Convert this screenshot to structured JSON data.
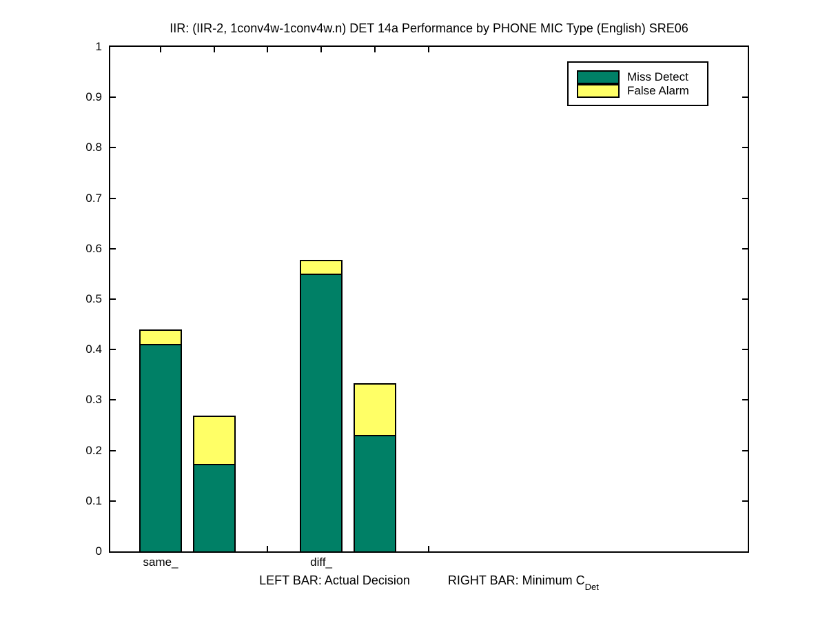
{
  "title": "IIR: (IIR-2, 1conv4w-1conv4w.n) DET 14a Performance by PHONE MIC Type (English) SRE06",
  "legend": {
    "position": "top-right",
    "items": [
      {
        "label": "Miss Detect",
        "color": "#008066"
      },
      {
        "label": "False Alarm",
        "color": "#ffff66"
      }
    ]
  },
  "footer": {
    "left_text": "LEFT BAR: Actual Decision",
    "right_text": "RIGHT BAR: Minimum C",
    "right_subscript": "Det"
  },
  "chart_data": {
    "type": "bar",
    "stacked": true,
    "title": "IIR: (IIR-2, 1conv4w-1conv4w.n) DET 14a Performance by PHONE MIC Type (English) SRE06",
    "xlabel": "LEFT BAR: Actual Decision     RIGHT BAR: Minimum C_Det",
    "ylabel": "",
    "ylim": [
      0,
      1
    ],
    "grid": false,
    "legend_position": "top-right",
    "series_names": [
      "Miss Detect",
      "False Alarm"
    ],
    "colors": {
      "miss_detect": "#008066",
      "false_alarm": "#ffff66"
    },
    "y_ticks": [
      {
        "value": 0.0,
        "label": "0"
      },
      {
        "value": 0.1,
        "label": "0.1"
      },
      {
        "value": 0.2,
        "label": "0.2"
      },
      {
        "value": 0.3,
        "label": "0.3"
      },
      {
        "value": 0.4,
        "label": "0.4"
      },
      {
        "value": 0.5,
        "label": "0.5"
      },
      {
        "value": 0.6,
        "label": "0.6"
      },
      {
        "value": 0.7,
        "label": "0.7"
      },
      {
        "value": 0.8,
        "label": "0.8"
      },
      {
        "value": 0.9,
        "label": "0.9"
      },
      {
        "value": 1.0,
        "label": "1"
      }
    ],
    "x_slots": {
      "count": 6,
      "labels": [
        "same_",
        "",
        "",
        "diff_",
        "",
        ""
      ]
    },
    "bars": [
      {
        "group": "same_",
        "kind": "actual-decision",
        "slot": 1,
        "miss_detect": 0.411,
        "false_alarm": 0.029,
        "total": 0.44
      },
      {
        "group": "same_",
        "kind": "minimum-cdet",
        "slot": 2,
        "miss_detect": 0.173,
        "false_alarm": 0.096,
        "total": 0.269
      },
      {
        "group": "diff_",
        "kind": "actual-decision",
        "slot": 4,
        "miss_detect": 0.55,
        "false_alarm": 0.028,
        "total": 0.578
      },
      {
        "group": "diff_",
        "kind": "minimum-cdet",
        "slot": 5,
        "miss_detect": 0.231,
        "false_alarm": 0.103,
        "total": 0.334
      }
    ]
  }
}
